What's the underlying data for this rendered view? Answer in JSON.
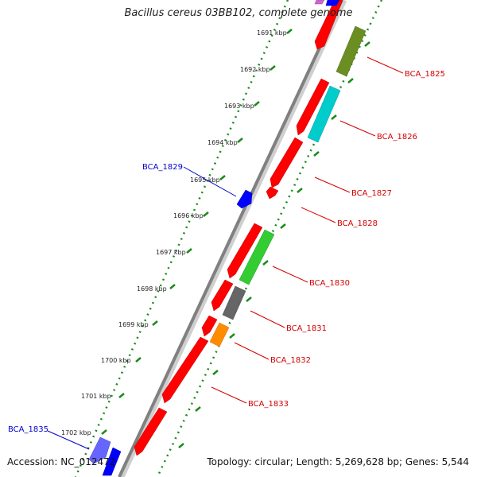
{
  "title": "Bacillus cereus 03BB102, complete genome",
  "footer": {
    "accession": "Accession: NC_012472",
    "summary": "Topology: circular; Length: 5,269,628 bp; Genes: 5,544"
  },
  "colors": {
    "backbone": "#808080",
    "scale_dots": "#1a8a1a",
    "label_red": "#d40000",
    "label_blue": "#0000cc"
  },
  "ruler_labels": [
    "1691 kbp",
    "1692 kbp",
    "1693 kbp",
    "1694 kbp",
    "1695 kbp",
    "1696 kbp",
    "1697 kbp",
    "1698 kbp",
    "1699 kbp",
    "1700 kbp",
    "1701 kbp",
    "1702 kbp"
  ],
  "gene_labels": [
    {
      "id": "BCA_1825",
      "color": "#d40000"
    },
    {
      "id": "BCA_1826",
      "color": "#d40000"
    },
    {
      "id": "BCA_1827",
      "color": "#d40000"
    },
    {
      "id": "BCA_1828",
      "color": "#d40000"
    },
    {
      "id": "BCA_1829",
      "color": "#0000cc"
    },
    {
      "id": "BCA_1830",
      "color": "#d40000"
    },
    {
      "id": "BCA_1831",
      "color": "#d40000"
    },
    {
      "id": "BCA_1832",
      "color": "#d40000"
    },
    {
      "id": "BCA_1833",
      "color": "#d40000"
    },
    {
      "id": "BCA_1835",
      "color": "#0000cc"
    }
  ]
}
